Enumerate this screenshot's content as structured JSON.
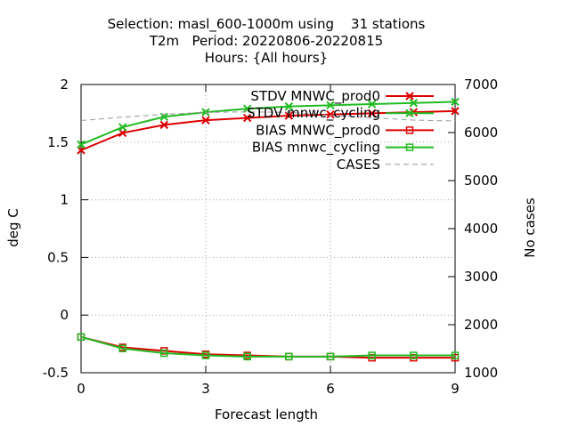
{
  "chart_data": {
    "type": "line",
    "title_lines": [
      "Selection: masl_600-1000m using    31 stations",
      "T2m   Period: 20220806-20220815",
      "Hours: {All hours}"
    ],
    "xlabel": "Forecast length",
    "ylabel": "deg C",
    "y2label": "No cases",
    "xlim": [
      0,
      9
    ],
    "ylim": [
      -0.5,
      2
    ],
    "y2lim": [
      1000,
      7000
    ],
    "xticks": [
      0,
      3,
      6,
      9
    ],
    "yticks": [
      -0.5,
      0,
      0.5,
      1,
      1.5,
      2
    ],
    "y2ticks": [
      1000,
      2000,
      3000,
      4000,
      5000,
      6000,
      7000
    ],
    "grid": true,
    "legend_position": "top-right",
    "x": [
      0,
      1,
      2,
      3,
      4,
      5,
      6,
      7,
      8,
      9
    ],
    "series": [
      {
        "name": "STDV MNWC_prod0",
        "axis": "y",
        "color": "#dd0000",
        "marker": "x",
        "values": [
          1.43,
          1.58,
          1.65,
          1.69,
          1.71,
          1.73,
          1.74,
          1.75,
          1.76,
          1.77
        ]
      },
      {
        "name": "STDV mnwc_cycling",
        "axis": "y",
        "color": "#22bb22",
        "marker": "x",
        "values": [
          1.48,
          1.63,
          1.72,
          1.76,
          1.79,
          1.81,
          1.82,
          1.83,
          1.84,
          1.85
        ]
      },
      {
        "name": "BIAS MNWC_prod0",
        "axis": "y",
        "color": "#dd0000",
        "marker": "square",
        "values": [
          -0.19,
          -0.28,
          -0.31,
          -0.34,
          -0.35,
          -0.36,
          -0.36,
          -0.37,
          -0.37,
          -0.37
        ]
      },
      {
        "name": "BIAS mnwc_cycling",
        "axis": "y",
        "color": "#22bb22",
        "marker": "square",
        "values": [
          -0.19,
          -0.29,
          -0.33,
          -0.35,
          -0.36,
          -0.36,
          -0.36,
          -0.35,
          -0.35,
          -0.35
        ]
      },
      {
        "name": "CASES",
        "axis": "y2",
        "color": "#999999",
        "marker": "none",
        "dash": true,
        "values": [
          6250,
          6320,
          6380,
          6420,
          6430,
          6420,
          6360,
          6310,
          6260,
          6240
        ]
      }
    ]
  }
}
